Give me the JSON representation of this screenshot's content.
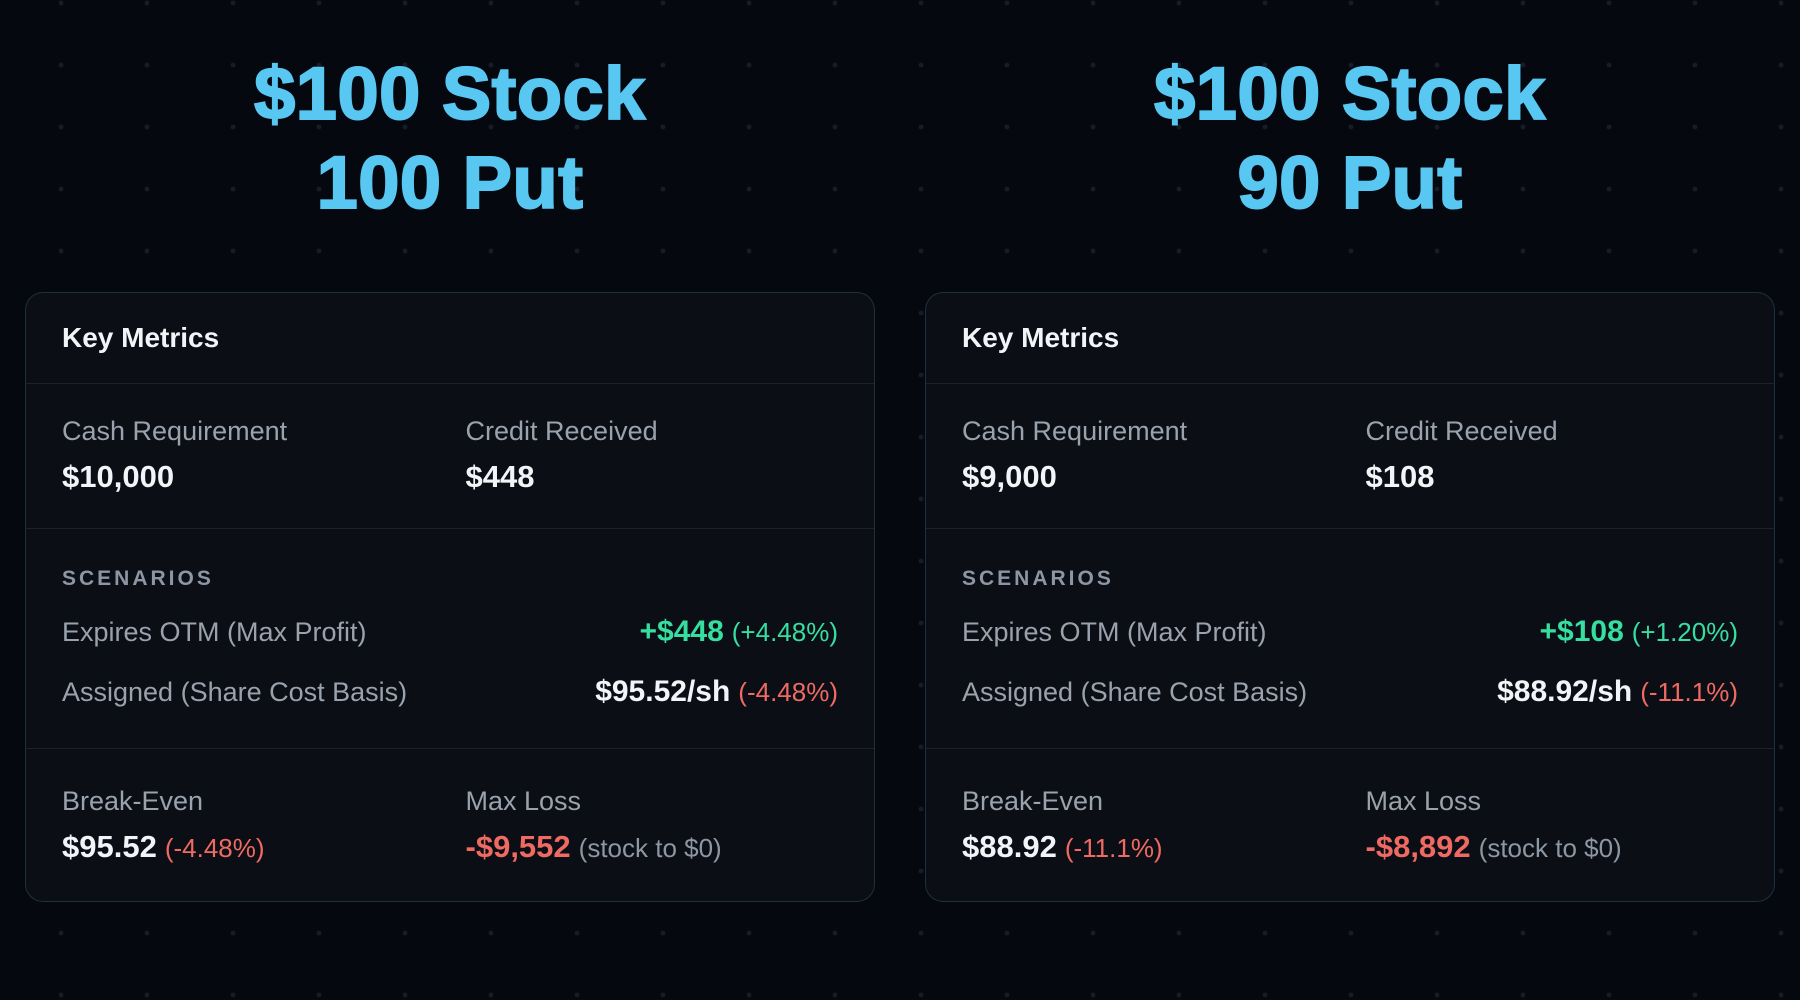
{
  "page": {
    "background_color": "#060810",
    "title_color": "#58c7f1",
    "green_color": "#36dfa0",
    "red_color": "#ee6a62",
    "label_gray_color": "#9aa2ad"
  },
  "cards": [
    {
      "title_line1": "$100 Stock",
      "title_line2": "100 Put",
      "header": "Key Metrics",
      "cash_label": "Cash Requirement",
      "cash_value": "$10,000",
      "credit_label": "Credit Received",
      "credit_value": "$448",
      "scenarios_label": "SCENARIOS",
      "otm_label": "Expires OTM (Max Profit)",
      "otm_value": "+$448",
      "otm_pct": "(+4.48%)",
      "assigned_label": "Assigned (Share Cost Basis)",
      "assigned_value": "$95.52/sh",
      "assigned_pct": "(-4.48%)",
      "breakeven_label": "Break-Even",
      "breakeven_value": "$95.52",
      "breakeven_pct": "(-4.48%)",
      "maxloss_label": "Max Loss",
      "maxloss_value": "-$9,552",
      "maxloss_note": "(stock to $0)"
    },
    {
      "title_line1": "$100 Stock",
      "title_line2": "90 Put",
      "header": "Key Metrics",
      "cash_label": "Cash Requirement",
      "cash_value": "$9,000",
      "credit_label": "Credit Received",
      "credit_value": "$108",
      "scenarios_label": "SCENARIOS",
      "otm_label": "Expires OTM (Max Profit)",
      "otm_value": "+$108",
      "otm_pct": "(+1.20%)",
      "assigned_label": "Assigned (Share Cost Basis)",
      "assigned_value": "$88.92/sh",
      "assigned_pct": "(-11.1%)",
      "breakeven_label": "Break-Even",
      "breakeven_value": "$88.92",
      "breakeven_pct": "(-11.1%)",
      "maxloss_label": "Max Loss",
      "maxloss_value": "-$8,892",
      "maxloss_note": "(stock to $0)"
    }
  ]
}
